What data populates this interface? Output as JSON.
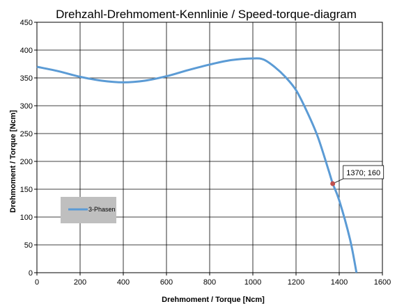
{
  "chart_data": {
    "type": "line",
    "title": "Drehzahl-Drehmoment-Kennlinie / Speed-torque-diagram",
    "xlabel": "Drehmoment / Torque [Ncm]",
    "ylabel": "Drehmoment / Torque [Ncm]",
    "xlim": [
      0,
      1600
    ],
    "ylim": [
      0,
      450
    ],
    "xticks": [
      0,
      200,
      400,
      600,
      800,
      1000,
      1200,
      1400,
      1600
    ],
    "yticks": [
      0,
      50,
      100,
      150,
      200,
      250,
      300,
      350,
      400,
      450
    ],
    "grid": true,
    "legend": {
      "placement": "left-middle",
      "entries": [
        "3-Phasen"
      ]
    },
    "series": [
      {
        "name": "3-Phasen",
        "color": "#5b9bd5",
        "x": [
          0,
          100,
          200,
          300,
          400,
          500,
          600,
          700,
          800,
          900,
          1000,
          1050,
          1100,
          1150,
          1200,
          1250,
          1300,
          1350,
          1370,
          1400,
          1450,
          1480
        ],
        "y": [
          370,
          362,
          352,
          345,
          342,
          345,
          353,
          364,
          374,
          382,
          385,
          383,
          370,
          352,
          328,
          290,
          245,
          185,
          160,
          130,
          60,
          0
        ]
      }
    ],
    "annotations": [
      {
        "x": 1370,
        "y": 160,
        "text": "1370; 160",
        "marker_color": "#c0504d"
      }
    ]
  }
}
